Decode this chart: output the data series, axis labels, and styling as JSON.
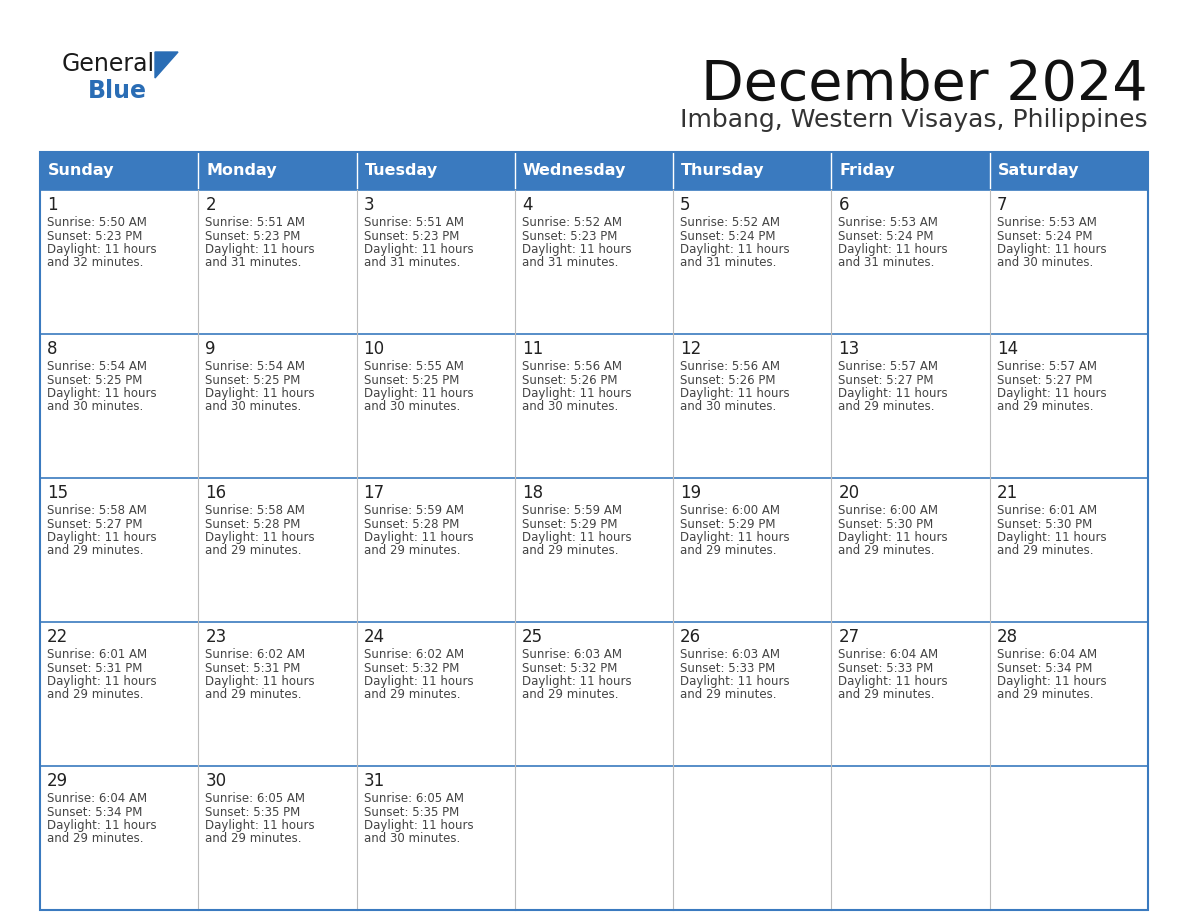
{
  "title": "December 2024",
  "subtitle": "Imbang, Western Visayas, Philippines",
  "days_of_week": [
    "Sunday",
    "Monday",
    "Tuesday",
    "Wednesday",
    "Thursday",
    "Friday",
    "Saturday"
  ],
  "header_bg": "#3a7abf",
  "header_text": "#ffffff",
  "cell_bg": "#ffffff",
  "border_color": "#3a7abf",
  "text_color": "#444444",
  "day_num_color": "#222222",
  "calendar_data": [
    [
      {
        "day": 1,
        "sunrise": "5:50 AM",
        "sunset": "5:23 PM",
        "daylight_h": "11 hours",
        "daylight_m": "and 32 minutes."
      },
      {
        "day": 2,
        "sunrise": "5:51 AM",
        "sunset": "5:23 PM",
        "daylight_h": "11 hours",
        "daylight_m": "and 31 minutes."
      },
      {
        "day": 3,
        "sunrise": "5:51 AM",
        "sunset": "5:23 PM",
        "daylight_h": "11 hours",
        "daylight_m": "and 31 minutes."
      },
      {
        "day": 4,
        "sunrise": "5:52 AM",
        "sunset": "5:23 PM",
        "daylight_h": "11 hours",
        "daylight_m": "and 31 minutes."
      },
      {
        "day": 5,
        "sunrise": "5:52 AM",
        "sunset": "5:24 PM",
        "daylight_h": "11 hours",
        "daylight_m": "and 31 minutes."
      },
      {
        "day": 6,
        "sunrise": "5:53 AM",
        "sunset": "5:24 PM",
        "daylight_h": "11 hours",
        "daylight_m": "and 31 minutes."
      },
      {
        "day": 7,
        "sunrise": "5:53 AM",
        "sunset": "5:24 PM",
        "daylight_h": "11 hours",
        "daylight_m": "and 30 minutes."
      }
    ],
    [
      {
        "day": 8,
        "sunrise": "5:54 AM",
        "sunset": "5:25 PM",
        "daylight_h": "11 hours",
        "daylight_m": "and 30 minutes."
      },
      {
        "day": 9,
        "sunrise": "5:54 AM",
        "sunset": "5:25 PM",
        "daylight_h": "11 hours",
        "daylight_m": "and 30 minutes."
      },
      {
        "day": 10,
        "sunrise": "5:55 AM",
        "sunset": "5:25 PM",
        "daylight_h": "11 hours",
        "daylight_m": "and 30 minutes."
      },
      {
        "day": 11,
        "sunrise": "5:56 AM",
        "sunset": "5:26 PM",
        "daylight_h": "11 hours",
        "daylight_m": "and 30 minutes."
      },
      {
        "day": 12,
        "sunrise": "5:56 AM",
        "sunset": "5:26 PM",
        "daylight_h": "11 hours",
        "daylight_m": "and 30 minutes."
      },
      {
        "day": 13,
        "sunrise": "5:57 AM",
        "sunset": "5:27 PM",
        "daylight_h": "11 hours",
        "daylight_m": "and 29 minutes."
      },
      {
        "day": 14,
        "sunrise": "5:57 AM",
        "sunset": "5:27 PM",
        "daylight_h": "11 hours",
        "daylight_m": "and 29 minutes."
      }
    ],
    [
      {
        "day": 15,
        "sunrise": "5:58 AM",
        "sunset": "5:27 PM",
        "daylight_h": "11 hours",
        "daylight_m": "and 29 minutes."
      },
      {
        "day": 16,
        "sunrise": "5:58 AM",
        "sunset": "5:28 PM",
        "daylight_h": "11 hours",
        "daylight_m": "and 29 minutes."
      },
      {
        "day": 17,
        "sunrise": "5:59 AM",
        "sunset": "5:28 PM",
        "daylight_h": "11 hours",
        "daylight_m": "and 29 minutes."
      },
      {
        "day": 18,
        "sunrise": "5:59 AM",
        "sunset": "5:29 PM",
        "daylight_h": "11 hours",
        "daylight_m": "and 29 minutes."
      },
      {
        "day": 19,
        "sunrise": "6:00 AM",
        "sunset": "5:29 PM",
        "daylight_h": "11 hours",
        "daylight_m": "and 29 minutes."
      },
      {
        "day": 20,
        "sunrise": "6:00 AM",
        "sunset": "5:30 PM",
        "daylight_h": "11 hours",
        "daylight_m": "and 29 minutes."
      },
      {
        "day": 21,
        "sunrise": "6:01 AM",
        "sunset": "5:30 PM",
        "daylight_h": "11 hours",
        "daylight_m": "and 29 minutes."
      }
    ],
    [
      {
        "day": 22,
        "sunrise": "6:01 AM",
        "sunset": "5:31 PM",
        "daylight_h": "11 hours",
        "daylight_m": "and 29 minutes."
      },
      {
        "day": 23,
        "sunrise": "6:02 AM",
        "sunset": "5:31 PM",
        "daylight_h": "11 hours",
        "daylight_m": "and 29 minutes."
      },
      {
        "day": 24,
        "sunrise": "6:02 AM",
        "sunset": "5:32 PM",
        "daylight_h": "11 hours",
        "daylight_m": "and 29 minutes."
      },
      {
        "day": 25,
        "sunrise": "6:03 AM",
        "sunset": "5:32 PM",
        "daylight_h": "11 hours",
        "daylight_m": "and 29 minutes."
      },
      {
        "day": 26,
        "sunrise": "6:03 AM",
        "sunset": "5:33 PM",
        "daylight_h": "11 hours",
        "daylight_m": "and 29 minutes."
      },
      {
        "day": 27,
        "sunrise": "6:04 AM",
        "sunset": "5:33 PM",
        "daylight_h": "11 hours",
        "daylight_m": "and 29 minutes."
      },
      {
        "day": 28,
        "sunrise": "6:04 AM",
        "sunset": "5:34 PM",
        "daylight_h": "11 hours",
        "daylight_m": "and 29 minutes."
      }
    ],
    [
      {
        "day": 29,
        "sunrise": "6:04 AM",
        "sunset": "5:34 PM",
        "daylight_h": "11 hours",
        "daylight_m": "and 29 minutes."
      },
      {
        "day": 30,
        "sunrise": "6:05 AM",
        "sunset": "5:35 PM",
        "daylight_h": "11 hours",
        "daylight_m": "and 29 minutes."
      },
      {
        "day": 31,
        "sunrise": "6:05 AM",
        "sunset": "5:35 PM",
        "daylight_h": "11 hours",
        "daylight_m": "and 30 minutes."
      },
      null,
      null,
      null,
      null
    ]
  ],
  "logo_color_general": "#1a1a1a",
  "logo_color_blue": "#2a6db5",
  "logo_triangle_color": "#2a6db5",
  "title_color": "#111111",
  "subtitle_color": "#333333"
}
